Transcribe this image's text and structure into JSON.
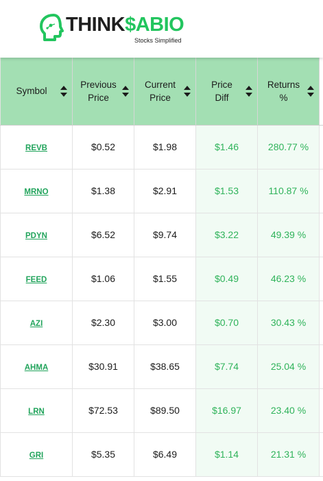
{
  "brand": {
    "name_part1": "THINK",
    "name_part2": "$ABIO",
    "tagline": "Stocks Simplified",
    "accent_color": "#22c55e",
    "header_bg": "#a3dfb3",
    "positive_color": "#2fb35a"
  },
  "table": {
    "columns": [
      {
        "label": "Symbol",
        "sort_icon": "sort-icon"
      },
      {
        "label": "Previous Price",
        "sort_icon": "sort-icon"
      },
      {
        "label": "Current Price",
        "sort_icon": "sort-icon"
      },
      {
        "label": "Price Diff",
        "sort_icon": "sort-icon"
      },
      {
        "label": "Returns %",
        "sort_icon": "sort-icon"
      }
    ],
    "rows": [
      {
        "symbol": "REVB",
        "previous": "$0.52",
        "current": "$1.98",
        "diff": "$1.46",
        "returns": "280.77 %"
      },
      {
        "symbol": "MRNO",
        "previous": "$1.38",
        "current": "$2.91",
        "diff": "$1.53",
        "returns": "110.87 %"
      },
      {
        "symbol": "PDYN",
        "previous": "$6.52",
        "current": "$9.74",
        "diff": "$3.22",
        "returns": "49.39 %"
      },
      {
        "symbol": "FEED",
        "previous": "$1.06",
        "current": "$1.55",
        "diff": "$0.49",
        "returns": "46.23 %"
      },
      {
        "symbol": "AZI",
        "previous": "$2.30",
        "current": "$3.00",
        "diff": "$0.70",
        "returns": "30.43 %"
      },
      {
        "symbol": "AHMA",
        "previous": "$30.91",
        "current": "$38.65",
        "diff": "$7.74",
        "returns": "25.04 %"
      },
      {
        "symbol": "LRN",
        "previous": "$72.53",
        "current": "$89.50",
        "diff": "$16.97",
        "returns": "23.40 %"
      },
      {
        "symbol": "GRI",
        "previous": "$5.35",
        "current": "$6.49",
        "diff": "$1.14",
        "returns": "21.31 %"
      }
    ]
  }
}
